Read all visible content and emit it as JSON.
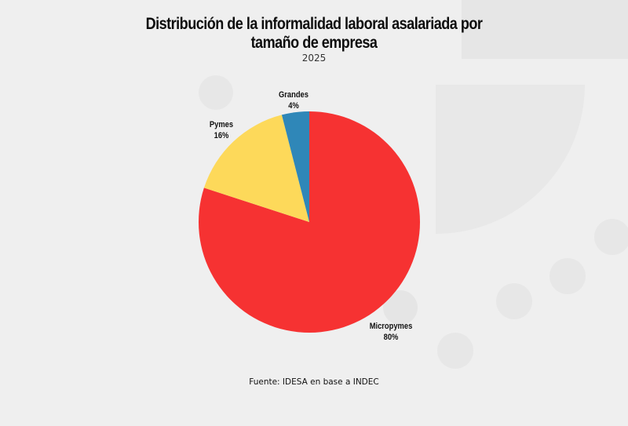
{
  "header": {
    "title_line1": "Distribución de la informalidad laboral asalariada por",
    "title_line2": "tamaño de empresa",
    "subtitle": "2025"
  },
  "footer": {
    "source": "Fuente: IDESA en base a INDEC"
  },
  "labels": {
    "micropymes": {
      "name": "Micropymes",
      "value": "80%"
    },
    "pymes": {
      "name": "Pymes",
      "value": "16%"
    },
    "grandes": {
      "name": "Grandes",
      "value": "4%"
    }
  },
  "colors": {
    "micropymes": "#f63232",
    "pymes": "#fdd95a",
    "grandes": "#2f87b8",
    "background": "#efefef"
  },
  "chart_data": {
    "type": "pie",
    "title": "Distribución de la informalidad laboral asalariada por tamaño de empresa",
    "subtitle": "2025",
    "categories": [
      "Micropymes",
      "Pymes",
      "Grandes"
    ],
    "values": [
      80,
      16,
      4
    ],
    "unit": "%",
    "colors": [
      "#f63232",
      "#fdd95a",
      "#2f87b8"
    ],
    "start_angle": "12 o'clock, clockwise",
    "legend": "none (direct labels)",
    "source": "Fuente: IDESA en base a INDEC"
  }
}
